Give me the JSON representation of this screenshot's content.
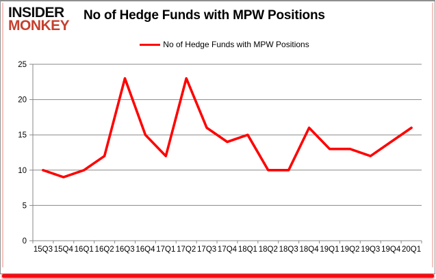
{
  "logo": {
    "line1": "INSIDER",
    "line2": "MONKEY"
  },
  "header": {
    "title": "No of Hedge Funds with MPW Positions"
  },
  "legend": {
    "label": "No of Hedge Funds with MPW Positions"
  },
  "chart_data": {
    "type": "line",
    "title": "No of Hedge Funds with MPW Positions",
    "categories": [
      "15Q3",
      "15Q4",
      "16Q1",
      "16Q2",
      "16Q3",
      "16Q4",
      "17Q1",
      "17Q2",
      "17Q3",
      "17Q4",
      "18Q1",
      "18Q2",
      "18Q3",
      "18Q4",
      "19Q1",
      "19Q2",
      "19Q3",
      "19Q4",
      "20Q1"
    ],
    "series": [
      {
        "name": "No of Hedge Funds with MPW Positions",
        "color": "#FF0000",
        "values": [
          10,
          9,
          10,
          12,
          23,
          15,
          12,
          23,
          16,
          14,
          15,
          10,
          10,
          16,
          13,
          13,
          12,
          14,
          16
        ]
      }
    ],
    "xlabel": "",
    "ylabel": "",
    "ylim": [
      0,
      25
    ],
    "yticks": [
      0,
      5,
      10,
      15,
      20,
      25
    ],
    "grid": true,
    "legend_position": "top-center"
  },
  "colors": {
    "line": "#FF0000",
    "grid": "#878787",
    "axis": "#878787",
    "text": "#000000",
    "logo_red": "#c6402e",
    "frame_pink": "#f5c4bf",
    "frame_red": "#fb0a10",
    "frame_gray": "#8f8f8f",
    "background": "#ffffff"
  }
}
